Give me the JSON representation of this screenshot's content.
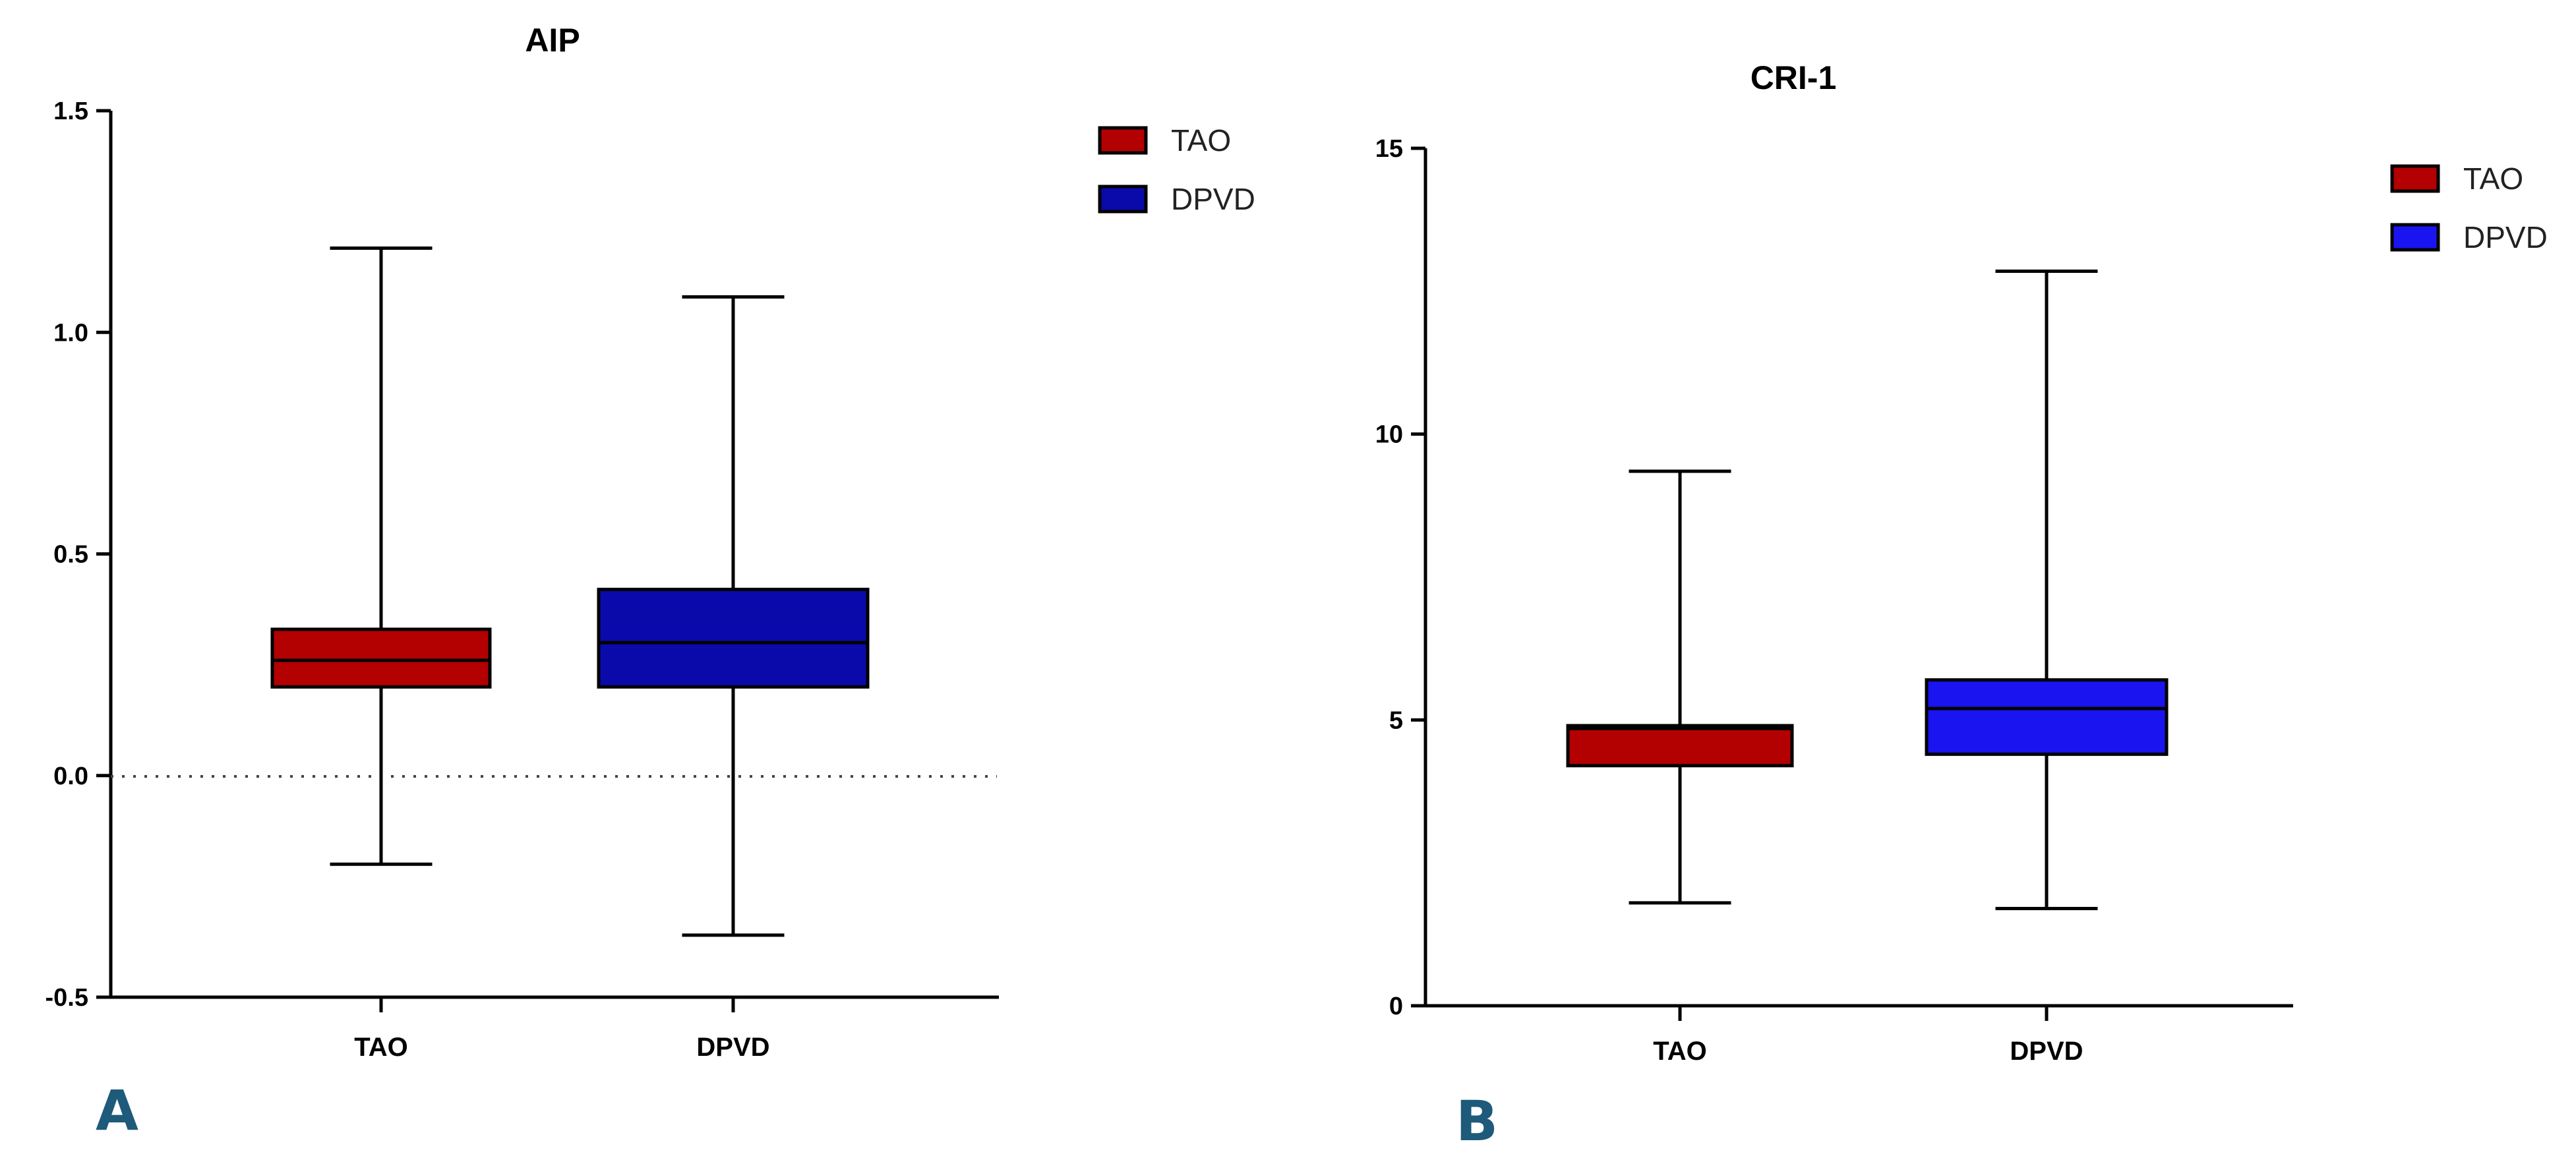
{
  "panel_labels": [
    "A",
    "B"
  ],
  "colors": {
    "TAO": "#b30000",
    "DPVD_A": "#0a0aaa",
    "DPVD_B": "#1a14f0",
    "panel_letter": "#1e5a7a",
    "axis": "#000000"
  },
  "chart_data": [
    {
      "type": "box",
      "title": "AIP",
      "xlabel": "",
      "ylabel": "",
      "categories": [
        "TAO",
        "DPVD"
      ],
      "ylim": [
        -0.5,
        1.5
      ],
      "yticks": [
        -0.5,
        0.0,
        0.5,
        1.0,
        1.5
      ],
      "ytick_labels": [
        "-0.5",
        "0.0",
        "0.5",
        "1.0",
        "1.5"
      ],
      "reference_line": {
        "y": 0.0,
        "style": "dotted"
      },
      "series": [
        {
          "name": "TAO",
          "min": -0.2,
          "q1": 0.2,
          "median": 0.26,
          "q3": 0.33,
          "max": 1.19
        },
        {
          "name": "DPVD",
          "min": -0.36,
          "q1": 0.2,
          "median": 0.3,
          "q3": 0.42,
          "max": 1.08
        }
      ],
      "legend": {
        "position": "top-right",
        "entries": [
          "TAO",
          "DPVD"
        ]
      },
      "grid": false
    },
    {
      "type": "box",
      "title": "CRI-1",
      "xlabel": "",
      "ylabel": "",
      "categories": [
        "TAO",
        "DPVD"
      ],
      "ylim": [
        0,
        15
      ],
      "yticks": [
        0,
        5,
        10,
        15
      ],
      "ytick_labels": [
        "0",
        "5",
        "10",
        "15"
      ],
      "series": [
        {
          "name": "TAO",
          "min": 1.8,
          "q1": 4.2,
          "median": 4.85,
          "q3": 4.9,
          "max": 9.35
        },
        {
          "name": "DPVD",
          "min": 1.7,
          "q1": 4.4,
          "median": 5.2,
          "q3": 5.7,
          "max": 12.85
        }
      ],
      "legend": {
        "position": "top-right",
        "entries": [
          "TAO",
          "DPVD"
        ]
      },
      "grid": false
    }
  ]
}
